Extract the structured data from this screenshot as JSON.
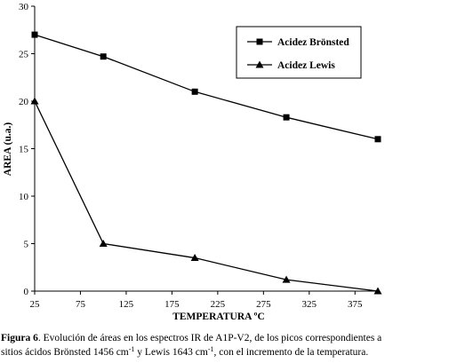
{
  "chart_data": {
    "type": "line",
    "xlabel": "TEMPERATURA ºC",
    "ylabel": "AREA (u.a.)",
    "xlim": [
      25,
      400
    ],
    "ylim": [
      0,
      30
    ],
    "xticks": [
      25,
      75,
      125,
      175,
      225,
      275,
      325,
      375
    ],
    "yticks": [
      0,
      5,
      10,
      15,
      20,
      25,
      30
    ],
    "grid": false,
    "legend_position": "top-right",
    "series": [
      {
        "name": "Acidez Brönsted",
        "marker": "square",
        "x": [
          25,
          100,
          200,
          300,
          400
        ],
        "y": [
          27,
          24.7,
          21,
          18.3,
          16
        ]
      },
      {
        "name": "Acidez Lewis",
        "marker": "triangle",
        "x": [
          25,
          100,
          200,
          300,
          400
        ],
        "y": [
          20,
          5,
          3.5,
          1.2,
          0
        ]
      }
    ]
  },
  "caption": {
    "label": "Figura 6",
    "line1": ". Evolución de áreas en los espectros IR de A1P-V2, de los picos correspondientes a",
    "line2_a": "sitios ácidos Brönsted 1456 cm",
    "sup1": "-1",
    "line2_b": " y Lewis 1643 cm",
    "sup2": "-1",
    "line2_c": ", con el incremento de la temperatura."
  }
}
